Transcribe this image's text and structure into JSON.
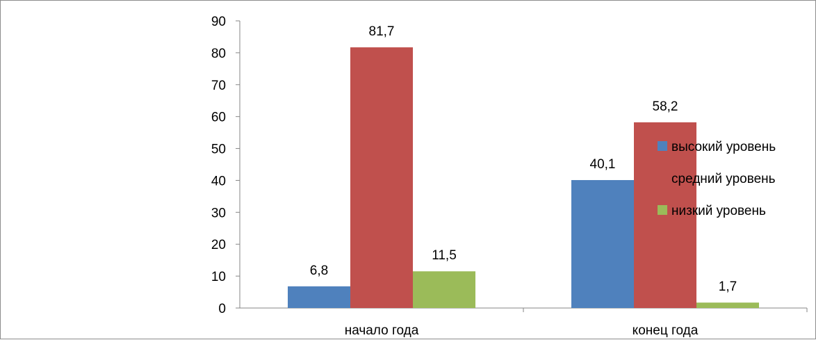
{
  "chart_data": {
    "type": "bar",
    "categories": [
      "начало года",
      "конец года"
    ],
    "series": [
      {
        "name": "высокий уровень",
        "values": [
          6.8,
          40.1
        ],
        "labels": [
          "6,8",
          "40,1"
        ],
        "color": "#4f81bd"
      },
      {
        "name": "средний уровень",
        "values": [
          81.7,
          58.2
        ],
        "labels": [
          "81,7",
          "58,2"
        ],
        "color": "#c0504d"
      },
      {
        "name": "низкий уровень",
        "values": [
          11.5,
          1.7
        ],
        "labels": [
          "11,5",
          "1,7"
        ],
        "color": "#9bbb59"
      }
    ],
    "yticks": [
      "0",
      "10",
      "20",
      "30",
      "40",
      "50",
      "60",
      "70",
      "80",
      "90"
    ],
    "ylim": [
      0,
      90
    ],
    "grid": false,
    "legend": "right",
    "legend_markers": [
      true,
      false,
      true
    ]
  }
}
